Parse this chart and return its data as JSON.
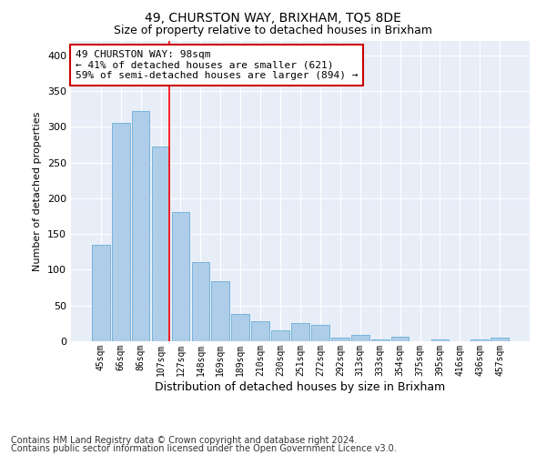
{
  "title": "49, CHURSTON WAY, BRIXHAM, TQ5 8DE",
  "subtitle": "Size of property relative to detached houses in Brixham",
  "xlabel": "Distribution of detached houses by size in Brixham",
  "ylabel": "Number of detached properties",
  "categories": [
    "45sqm",
    "66sqm",
    "86sqm",
    "107sqm",
    "127sqm",
    "148sqm",
    "169sqm",
    "189sqm",
    "210sqm",
    "230sqm",
    "251sqm",
    "272sqm",
    "292sqm",
    "313sqm",
    "333sqm",
    "354sqm",
    "375sqm",
    "395sqm",
    "416sqm",
    "436sqm",
    "457sqm"
  ],
  "values": [
    135,
    305,
    322,
    272,
    181,
    111,
    84,
    38,
    28,
    15,
    25,
    23,
    5,
    9,
    3,
    6,
    0,
    2,
    0,
    2,
    5
  ],
  "bar_color": "#aecde8",
  "bar_edge_color": "#6aaed6",
  "red_line_index": 3,
  "annotation_text": "49 CHURSTON WAY: 98sqm\n← 41% of detached houses are smaller (621)\n59% of semi-detached houses are larger (894) →",
  "annotation_box_color": "#ffffff",
  "annotation_box_edge": "#cc0000",
  "ylim": [
    0,
    420
  ],
  "yticks": [
    0,
    50,
    100,
    150,
    200,
    250,
    300,
    350,
    400
  ],
  "footer_line1": "Contains HM Land Registry data © Crown copyright and database right 2024.",
  "footer_line2": "Contains public sector information licensed under the Open Government Licence v3.0.",
  "plot_bg_color": "#e8eef8",
  "fig_bg_color": "#ffffff",
  "grid_color": "#ffffff",
  "title_fontsize": 10,
  "subtitle_fontsize": 9,
  "annotation_fontsize": 8,
  "footer_fontsize": 7,
  "ylabel_fontsize": 8,
  "xlabel_fontsize": 9
}
